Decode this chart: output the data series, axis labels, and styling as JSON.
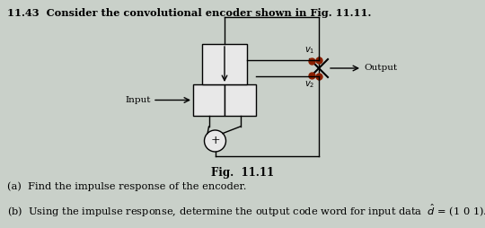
{
  "bg_color": "#c9d0c9",
  "title_text": "11.43  Consider the convolutional encoder shown in Fig. 11.11.",
  "fig_label": "Fig.  11.11",
  "part_a": "(a)  Find the impulse response of the encoder.",
  "part_b": "(b)  Using the impulse response, determine the output code word for input data  $\\hat{d}$  = (1 0 1).",
  "input_label": "Input",
  "output_label": "Output",
  "v1_label": "$v_1$",
  "v2_label": "$v_2$"
}
